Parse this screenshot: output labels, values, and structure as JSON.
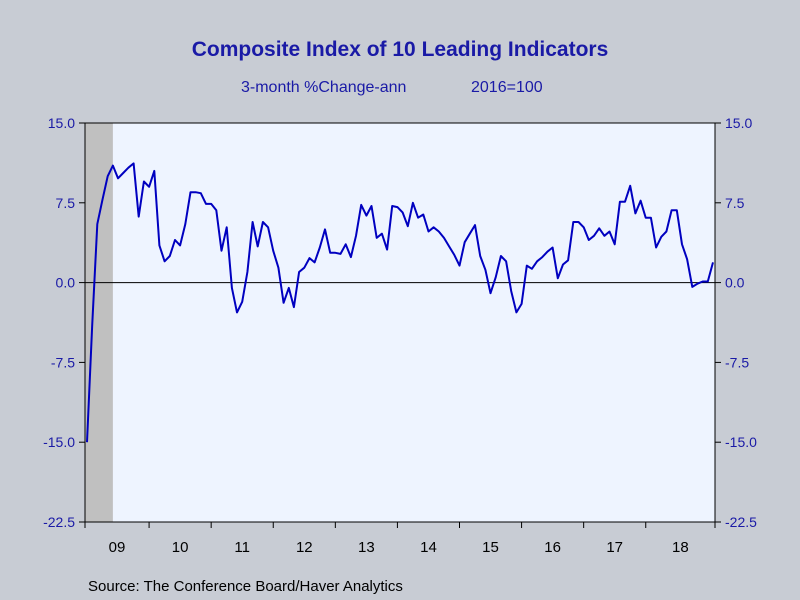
{
  "chart_data": {
    "type": "line",
    "title": "Composite Index of 10 Leading Indicators",
    "subtitle_left": "3-month %Change-ann",
    "subtitle_right": "2016=100",
    "source": "Source:  The Conference Board/Haver Analytics",
    "ylim": [
      -22.5,
      15.0
    ],
    "yticks": [
      "15.0",
      "7.5",
      "0.0",
      "-7.5",
      "-15.0",
      "-22.5"
    ],
    "ytick_values": [
      15.0,
      7.5,
      0.0,
      -7.5,
      -15.0,
      -22.5
    ],
    "xticks": [
      "09",
      "10",
      "11",
      "12",
      "13",
      "14",
      "15",
      "16",
      "17",
      "18"
    ],
    "recession_shading_until": "2009-06",
    "grid": false,
    "zero_line": true,
    "colors": {
      "line": "#0000c0",
      "plot_background": "#eef4ff",
      "recession": "#c0c0c0",
      "text": "#1a1aa6",
      "page_background": "#c8ccd4"
    },
    "series": [
      {
        "start": "2009-01",
        "values": [
          -15.0,
          -4.0,
          5.5,
          7.8,
          10.0,
          11.0,
          9.8,
          10.3,
          10.8,
          11.2,
          6.2,
          9.5,
          9.0,
          10.5,
          3.5,
          2.0,
          2.5,
          4.0,
          3.5,
          5.5,
          8.5,
          8.5,
          8.4,
          7.4,
          7.4,
          6.8,
          3.0,
          5.2,
          -0.5,
          -2.8,
          -1.8,
          1.0,
          5.7,
          3.4,
          5.7,
          5.2,
          3.0,
          1.4,
          -1.9,
          -0.5,
          -2.3,
          1.0,
          1.4,
          2.3,
          1.9,
          3.3,
          5.0,
          2.8,
          2.8,
          2.7,
          3.6,
          2.4,
          4.4,
          7.3,
          6.3,
          7.2,
          4.2,
          4.6,
          3.1,
          7.2,
          7.1,
          6.6,
          5.3,
          7.5,
          6.1,
          6.4,
          4.8,
          5.2,
          4.8,
          4.2,
          3.4,
          2.6,
          1.6,
          3.8,
          4.6,
          5.4,
          2.5,
          1.2,
          -1.0,
          0.5,
          2.5,
          2.0,
          -0.8,
          -2.8,
          -2.0,
          1.6,
          1.3,
          2.0,
          2.4,
          2.9,
          3.3,
          0.4,
          1.7,
          2.1,
          5.7,
          5.7,
          5.2,
          4.0,
          4.4,
          5.1,
          4.4,
          4.8,
          3.6,
          7.6,
          7.6,
          9.1,
          6.5,
          7.7,
          6.1,
          6.1,
          3.3,
          4.3,
          4.8,
          6.8,
          6.8,
          3.6,
          2.2,
          -0.4,
          -0.1,
          0.1,
          0.1,
          1.9
        ]
      }
    ]
  }
}
